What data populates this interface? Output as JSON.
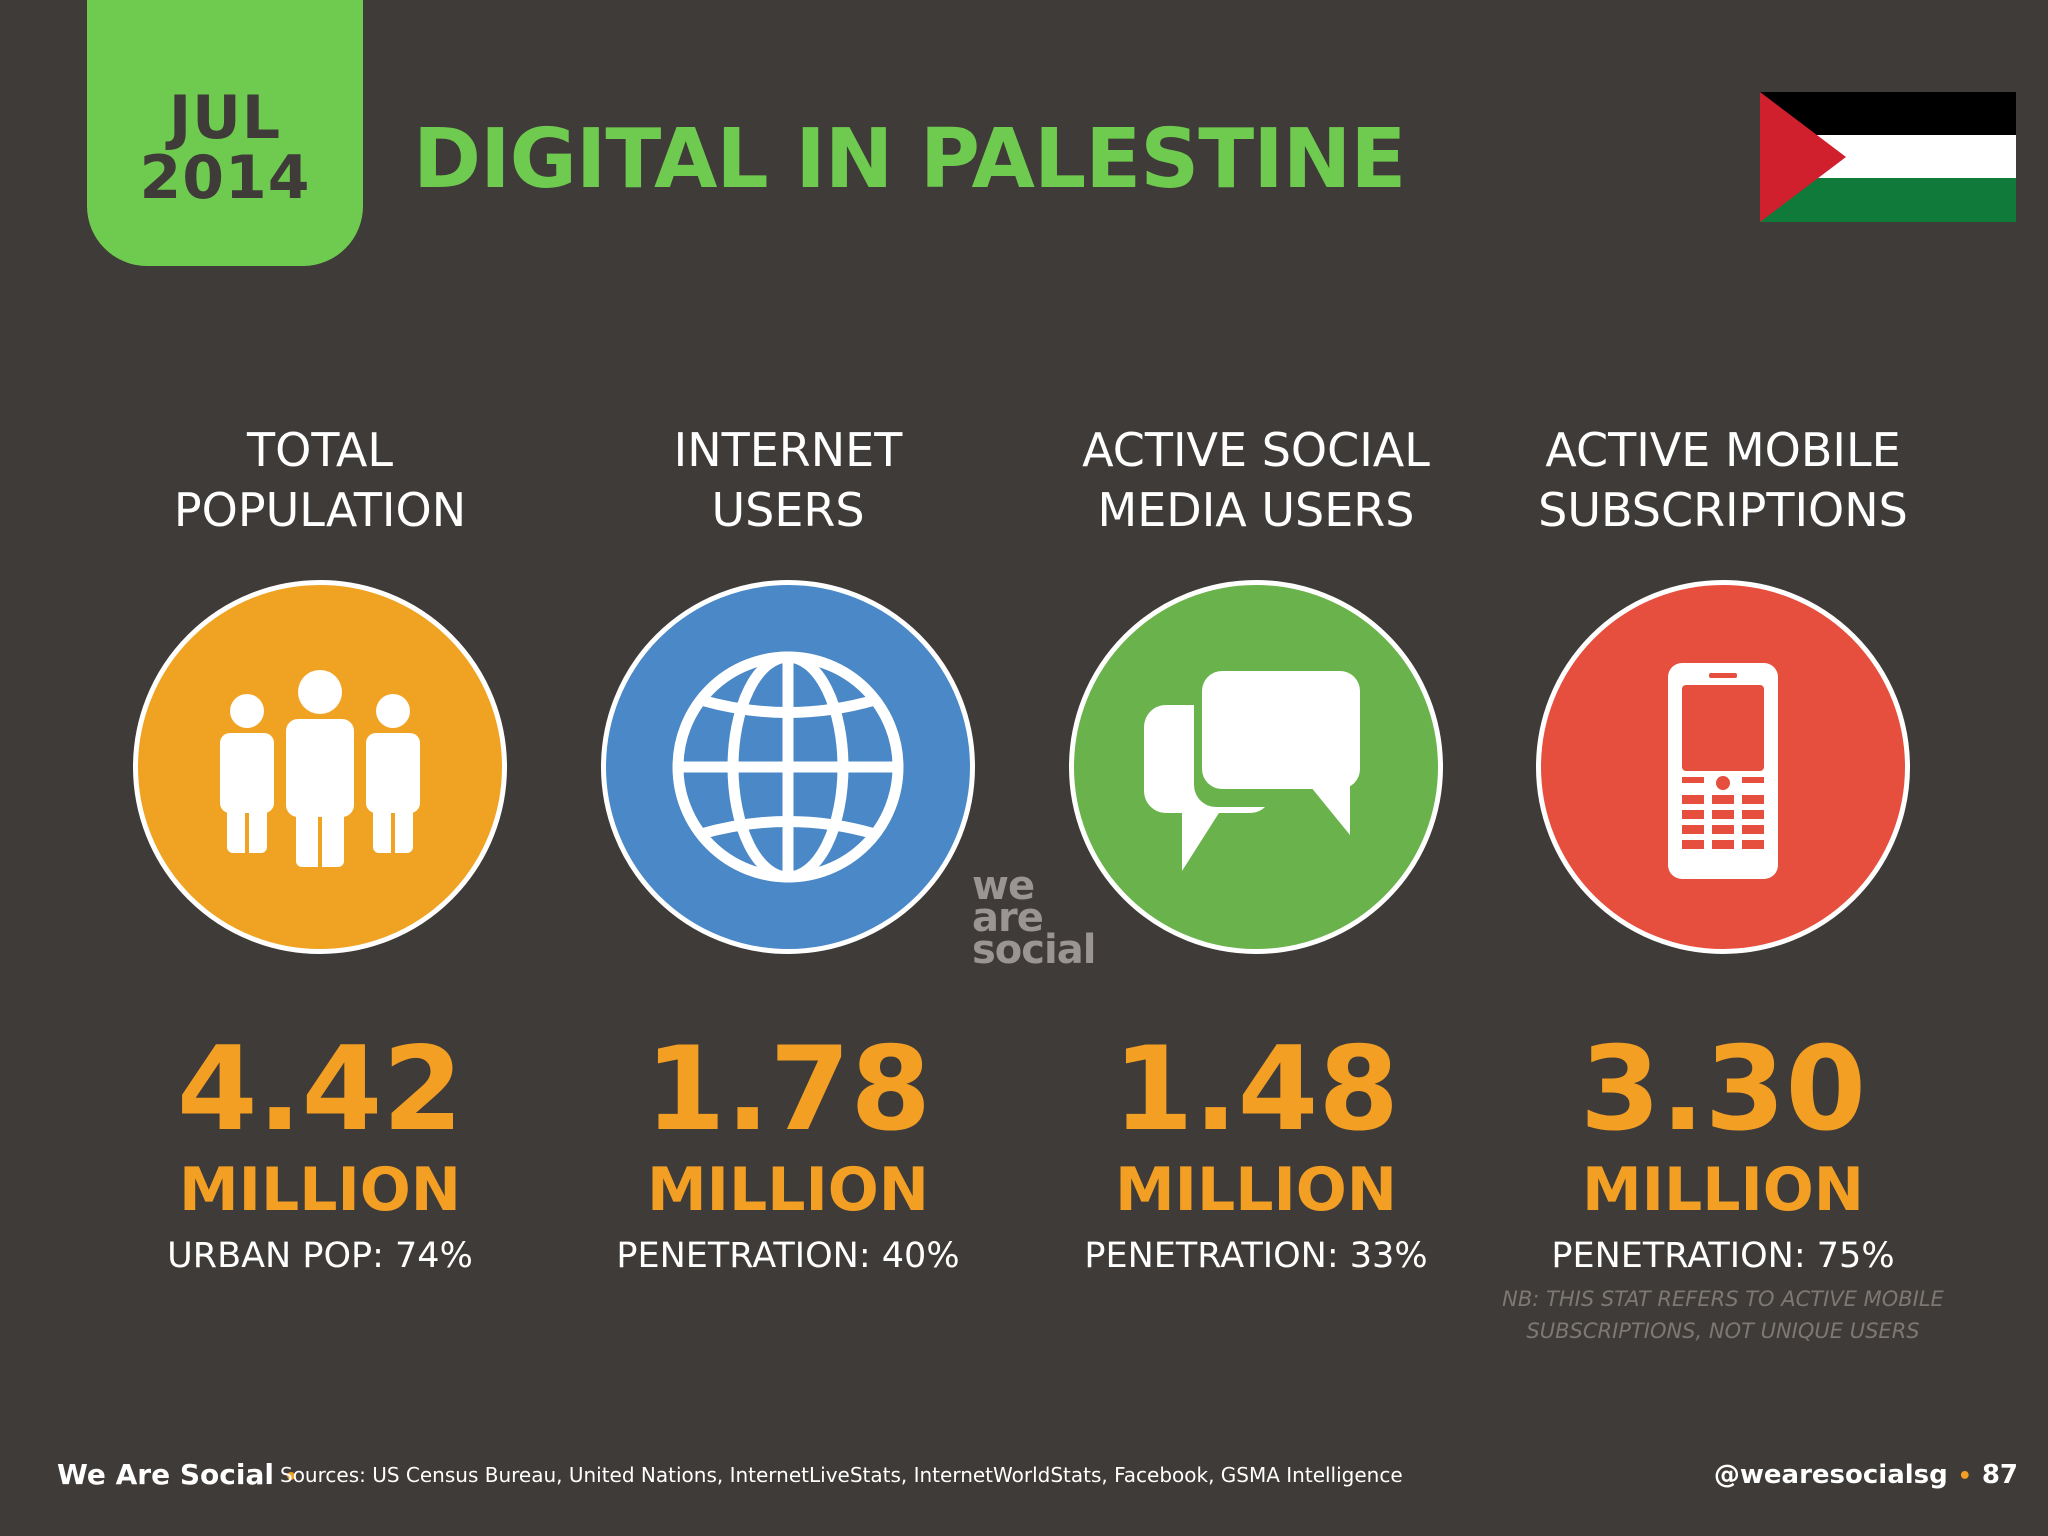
{
  "header": {
    "month": "JUL",
    "year": "2014",
    "title": "DIGITAL IN PALESTINE",
    "flag": "palestine-flag"
  },
  "stats": [
    {
      "heading_line1": "TOTAL",
      "heading_line2": "POPULATION",
      "icon": "people-icon",
      "color": "#f0a323",
      "value": "4.42",
      "unit": "MILLION",
      "sub": "URBAN POP: 74%"
    },
    {
      "heading_line1": "INTERNET",
      "heading_line2": "USERS",
      "icon": "globe-icon",
      "color": "#4a88c7",
      "value": "1.78",
      "unit": "MILLION",
      "sub": "PENETRATION: 40%"
    },
    {
      "heading_line1": "ACTIVE SOCIAL",
      "heading_line2": "MEDIA USERS",
      "icon": "chat-bubbles-icon",
      "color": "#6ab34c",
      "value": "1.48",
      "unit": "MILLION",
      "sub": "PENETRATION: 33%"
    },
    {
      "heading_line1": "ACTIVE MOBILE",
      "heading_line2": "SUBSCRIPTIONS",
      "icon": "mobile-phone-icon",
      "color": "#e64f3e",
      "value": "3.30",
      "unit": "MILLION",
      "sub": "PENETRATION: 75%",
      "note_line1": "NB: THIS STAT REFERS TO ACTIVE MOBILE",
      "note_line2": "SUBSCRIPTIONS, NOT UNIQUE USERS"
    }
  ],
  "watermark": [
    "we",
    "are",
    "social"
  ],
  "footer": {
    "brand": "We Are Social",
    "sources": "Sources: US Census Bureau, United Nations, InternetLiveStats, InternetWorldStats, Facebook, GSMA Intelligence",
    "handle": "@wearesocialsg",
    "page": "87"
  }
}
